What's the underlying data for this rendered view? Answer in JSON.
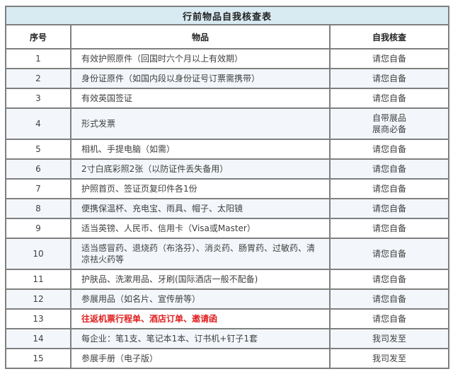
{
  "table": {
    "title": "行前物品自我核查表",
    "columns": [
      "序号",
      "物品",
      "自我核查"
    ],
    "rows": [
      {
        "no": "1",
        "item": "有效护照原件（回国时六个月以上有效期）",
        "check": "请您自备",
        "highlight": false
      },
      {
        "no": "2",
        "item": "身份证原件（如国内段以身份证号订票需携带）",
        "check": "请您自备",
        "highlight": false
      },
      {
        "no": "3",
        "item": "有效英国签证",
        "check": "请您自备",
        "highlight": false
      },
      {
        "no": "4",
        "item": "形式发票",
        "check": "自带展品\n展商必备",
        "highlight": false
      },
      {
        "no": "5",
        "item": "相机、手提电脑（如需）",
        "check": "请您自备",
        "highlight": false
      },
      {
        "no": "6",
        "item": "2寸白底彩照2张（以防证件丢失备用）",
        "check": "请您自备",
        "highlight": false
      },
      {
        "no": "7",
        "item": "护照首页、签证页复印件各1份",
        "check": "请您自备",
        "highlight": false
      },
      {
        "no": "8",
        "item": "便携保温杯、充电宝、雨具、帽子、太阳镜",
        "check": "请您自备",
        "highlight": false
      },
      {
        "no": "9",
        "item": "适当英镑、人民币、信用卡（Visa或Master）",
        "check": "请您自备",
        "highlight": false
      },
      {
        "no": "10",
        "item": "适当感冒药、退烧药（布洛芬）、消炎药、肠胃药、过敏药、清凉祛火药等",
        "check": "请您自备",
        "highlight": false
      },
      {
        "no": "11",
        "item": "护肤品、洗漱用品、牙刷(国际酒店一般不配备)",
        "check": "请您自备",
        "highlight": false
      },
      {
        "no": "12",
        "item": "参展用品（如名片、宣传册等）",
        "check": "请您自备",
        "highlight": false
      },
      {
        "no": "13",
        "item": "往返机票行程单、酒店订单、邀请函",
        "check": "请您自备",
        "highlight": true
      },
      {
        "no": "14",
        "item": "每企业：笔1支、笔记本1本、订书机+钉子1套",
        "check": "我司发至",
        "highlight": false
      },
      {
        "no": "15",
        "item": "参展手册（电子版）",
        "check": "我司发至",
        "highlight": false
      }
    ]
  },
  "colors": {
    "title_bg": "#d9ebf2",
    "stripe_bg": "#f3f7fb",
    "border": "#7f7f7f",
    "text": "#3f3f3f",
    "highlight_text": "#e02020"
  }
}
